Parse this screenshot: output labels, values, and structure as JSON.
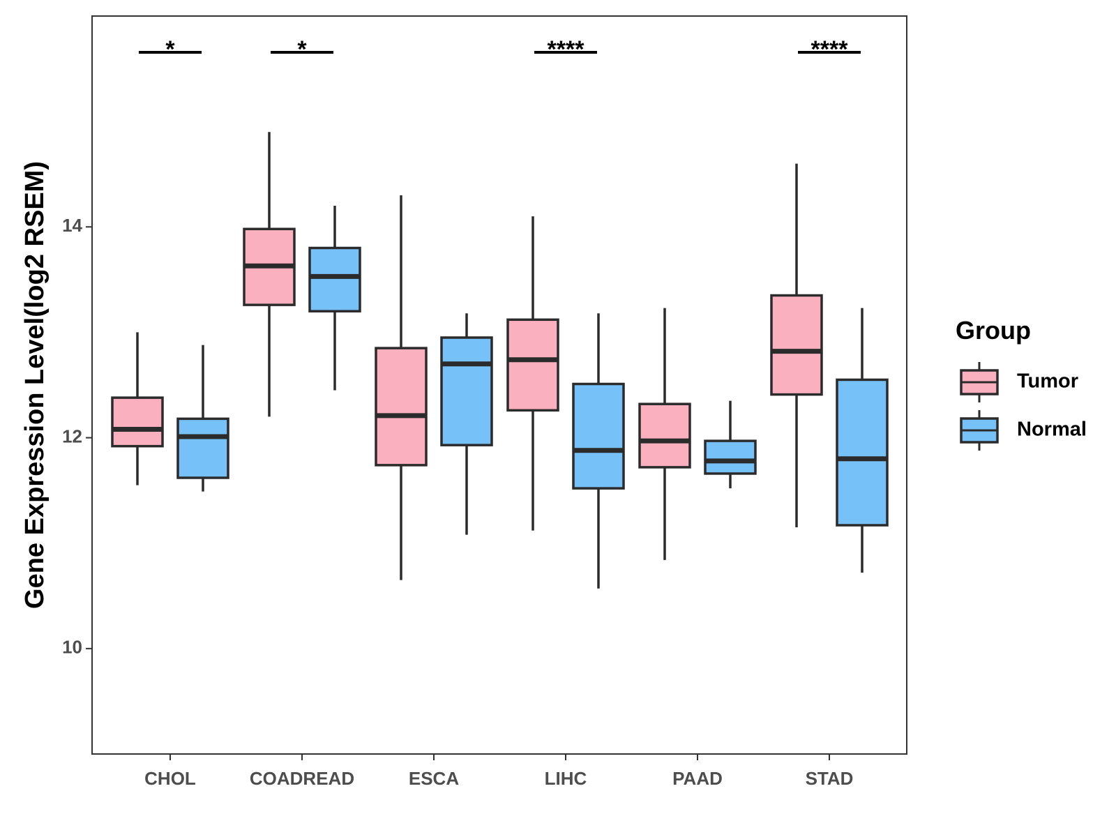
{
  "chart_data": {
    "type": "boxplot",
    "ylabel": "Gene Expression Level(log2 RSEM)",
    "xlabel": "",
    "ylim": [
      9.0,
      16.0
    ],
    "yticks": [
      10,
      12,
      14
    ],
    "categories": [
      "CHOL",
      "COADREAD",
      "ESCA",
      "LIHC",
      "PAAD",
      "STAD"
    ],
    "legend": {
      "title": "Group",
      "position": "right",
      "entries": [
        {
          "name": "Tumor",
          "color": "#fbb0c0"
        },
        {
          "name": "Normal",
          "color": "#76c1f8"
        }
      ]
    },
    "series": [
      {
        "name": "Tumor",
        "color": "#fbb0c0",
        "boxes": [
          {
            "min": 11.55,
            "q1": 11.92,
            "median": 12.08,
            "q3": 12.38,
            "max": 13.0
          },
          {
            "min": 12.2,
            "q1": 13.26,
            "median": 13.63,
            "q3": 13.98,
            "max": 14.9
          },
          {
            "min": 10.65,
            "q1": 11.74,
            "median": 12.21,
            "q3": 12.85,
            "max": 14.3
          },
          {
            "min": 11.12,
            "q1": 12.26,
            "median": 12.74,
            "q3": 13.12,
            "max": 14.1
          },
          {
            "min": 10.84,
            "q1": 11.72,
            "median": 11.97,
            "q3": 12.32,
            "max": 13.23
          },
          {
            "min": 11.15,
            "q1": 12.41,
            "median": 12.82,
            "q3": 13.35,
            "max": 14.6
          }
        ]
      },
      {
        "name": "Normal",
        "color": "#76c1f8",
        "boxes": [
          {
            "min": 11.49,
            "q1": 11.62,
            "median": 12.01,
            "q3": 12.18,
            "max": 12.88
          },
          {
            "min": 12.45,
            "q1": 13.2,
            "median": 13.53,
            "q3": 13.8,
            "max": 14.2
          },
          {
            "min": 11.08,
            "q1": 11.93,
            "median": 12.7,
            "q3": 12.95,
            "max": 13.18
          },
          {
            "min": 10.57,
            "q1": 11.52,
            "median": 11.88,
            "q3": 12.51,
            "max": 13.18
          },
          {
            "min": 11.52,
            "q1": 11.66,
            "median": 11.78,
            "q3": 11.97,
            "max": 12.35
          },
          {
            "min": 10.72,
            "q1": 11.17,
            "median": 11.8,
            "q3": 12.55,
            "max": 13.23
          }
        ]
      }
    ],
    "significance": [
      {
        "category": "CHOL",
        "label": "*"
      },
      {
        "category": "COADREAD",
        "label": "*"
      },
      {
        "category": "LIHC",
        "label": "****"
      },
      {
        "category": "STAD",
        "label": "****"
      }
    ]
  }
}
